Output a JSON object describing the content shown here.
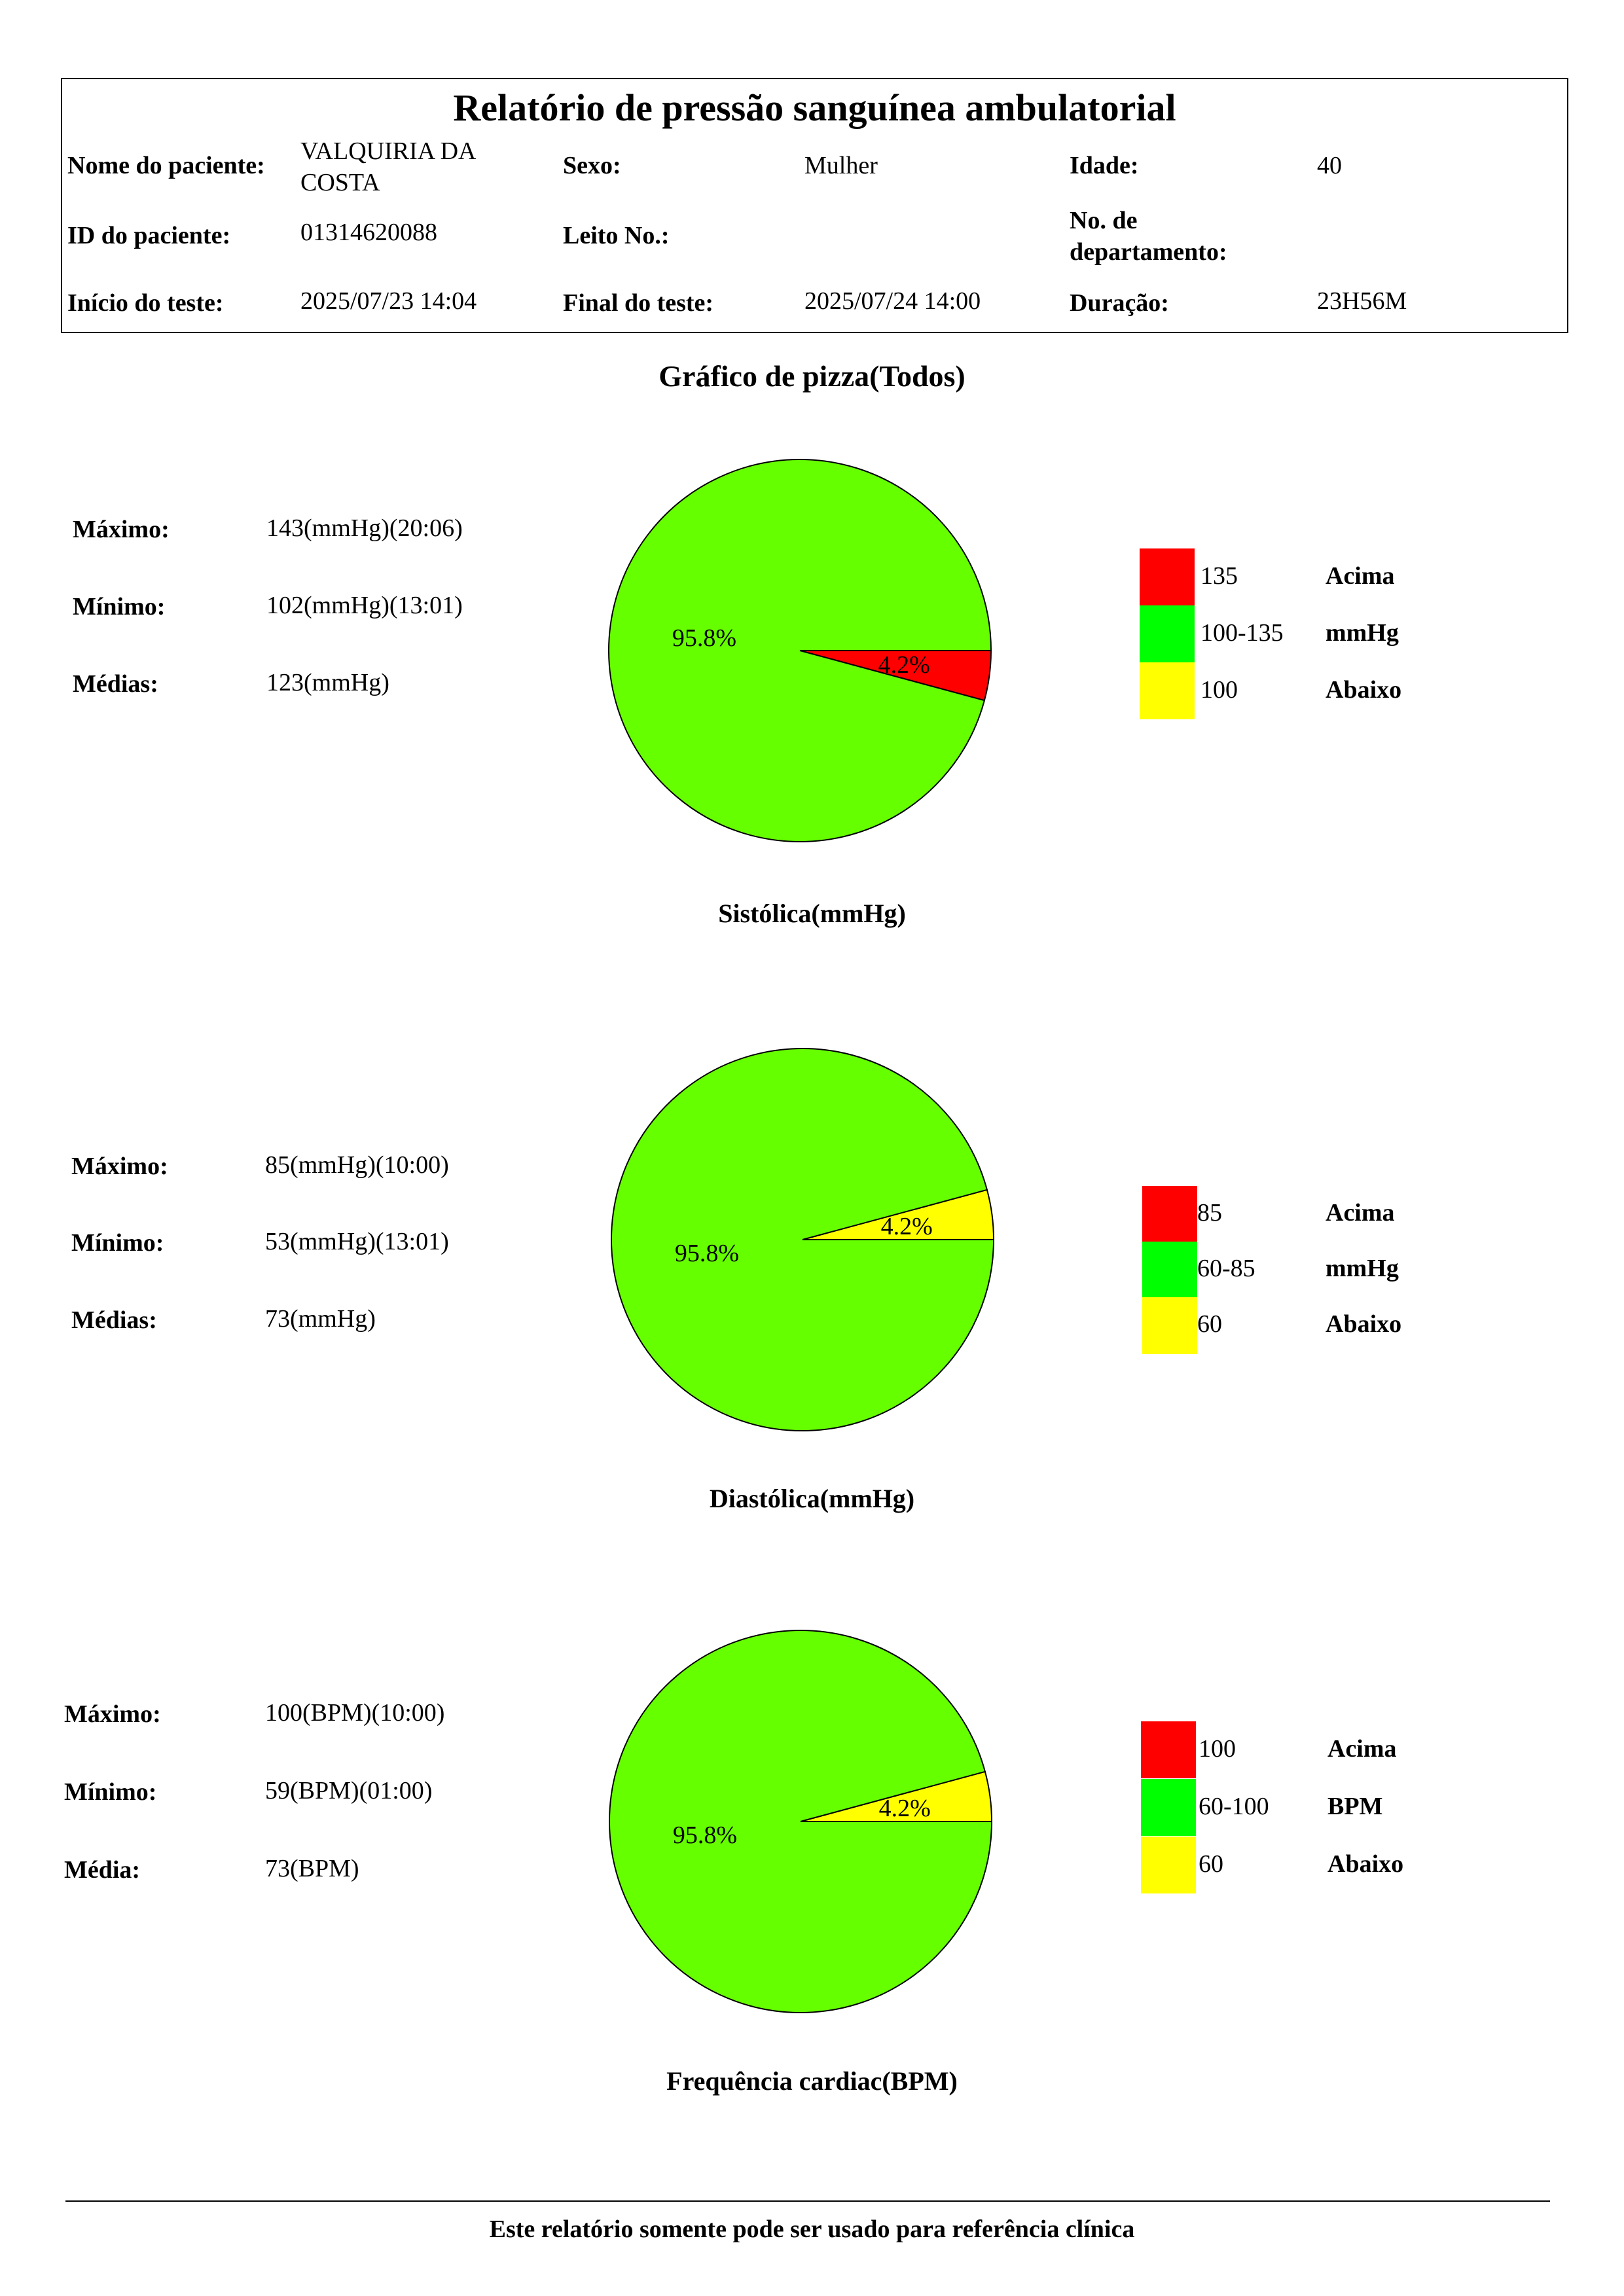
{
  "header": {
    "title": "Relatório de pressão sanguínea ambulatorial",
    "patient_name_label": "Nome do paciente:",
    "patient_name_line1": "VALQUIRIA DA",
    "patient_name_line2": "COSTA",
    "sex_label": "Sexo:",
    "sex_value": "Mulher",
    "age_label": "Idade:",
    "age_value": "40",
    "patient_id_label": "ID do paciente:",
    "patient_id_value": "01314620088",
    "bed_label": "Leito No.:",
    "bed_value": "",
    "dept_label_line1": "No. de",
    "dept_label_line2": "departamento:",
    "dept_value": "",
    "start_label": "Início do teste:",
    "start_value": "2025/07/23 14:04",
    "end_label": "Final do teste:",
    "end_value": "2025/07/24 14:00",
    "duration_label": "Duração:",
    "duration_value": "23H56M"
  },
  "section_title": "Gráfico de pizza(Todos)",
  "colors": {
    "above": "#ff0000",
    "normal_pie": "#66ff00",
    "normal_legend": "#00ff00",
    "below": "#ffff00"
  },
  "charts": [
    {
      "caption": "Sistólica(mmHg)",
      "stats": [
        {
          "label": "Máximo:",
          "value": "143(mmHg)(20:06)"
        },
        {
          "label": "Mínimo:",
          "value": "102(mmHg)(13:01)"
        },
        {
          "label": "Médias:",
          "value": "123(mmHg)"
        }
      ],
      "legend": [
        {
          "range": "135",
          "word": "Acima",
          "color": "#ff0000"
        },
        {
          "range": "100-135",
          "word": "mmHg",
          "color": "#00ff00"
        },
        {
          "range": "100",
          "word": "Abaixo",
          "color": "#ffff00"
        }
      ]
    },
    {
      "caption": "Diastólica(mmHg)",
      "stats": [
        {
          "label": "Máximo:",
          "value": "85(mmHg)(10:00)"
        },
        {
          "label": "Mínimo:",
          "value": "53(mmHg)(13:01)"
        },
        {
          "label": "Médias:",
          "value": "73(mmHg)"
        }
      ],
      "legend": [
        {
          "range": "85",
          "word": "Acima",
          "color": "#ff0000"
        },
        {
          "range": "60-85",
          "word": "mmHg",
          "color": "#00ff00"
        },
        {
          "range": "60",
          "word": "Abaixo",
          "color": "#ffff00"
        }
      ]
    },
    {
      "caption": "Frequência cardiac(BPM)",
      "stats": [
        {
          "label": "Máximo:",
          "value": "100(BPM)(10:00)"
        },
        {
          "label": "Mínimo:",
          "value": "59(BPM)(01:00)"
        },
        {
          "label": "Média:",
          "value": "73(BPM)"
        }
      ],
      "legend": [
        {
          "range": "100",
          "word": "Acima",
          "color": "#ff0000"
        },
        {
          "range": "60-100",
          "word": "BPM",
          "color": "#00ff00"
        },
        {
          "range": "60",
          "word": "Abaixo",
          "color": "#ffff00"
        }
      ]
    }
  ],
  "chart_data": [
    {
      "type": "pie",
      "title": "Sistólica(mmHg)",
      "slices": [
        {
          "name": "Acima",
          "value": 4.2,
          "label": "4.2%",
          "color": "#ff0000"
        },
        {
          "name": "mmHg",
          "value": 95.8,
          "label": "95.8%",
          "color": "#66ff00"
        }
      ]
    },
    {
      "type": "pie",
      "title": "Diastólica(mmHg)",
      "slices": [
        {
          "name": "Abaixo",
          "value": 4.2,
          "label": "4.2%",
          "color": "#ffff00"
        },
        {
          "name": "mmHg",
          "value": 95.8,
          "label": "95.8%",
          "color": "#66ff00"
        }
      ]
    },
    {
      "type": "pie",
      "title": "Frequência cardiac(BPM)",
      "slices": [
        {
          "name": "Abaixo",
          "value": 4.2,
          "label": "4.2%",
          "color": "#ffff00"
        },
        {
          "name": "BPM",
          "value": 95.8,
          "label": "95.8%",
          "color": "#66ff00"
        }
      ]
    }
  ],
  "footer": "Este relatório somente pode ser usado para referência clínica"
}
